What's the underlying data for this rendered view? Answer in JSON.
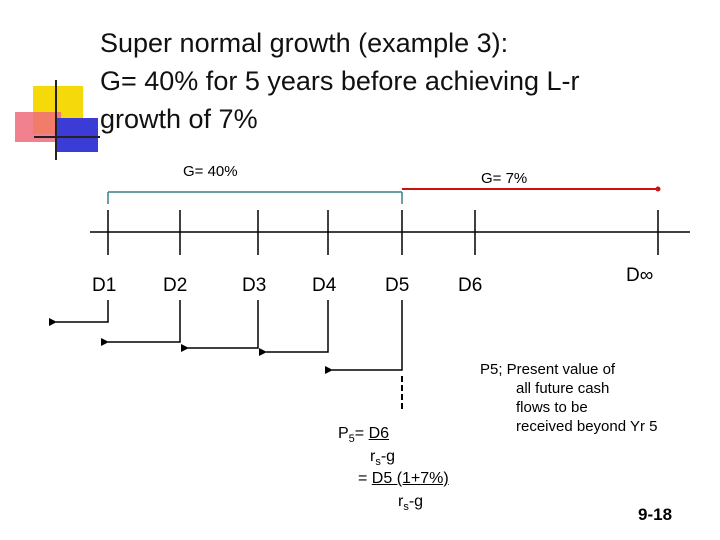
{
  "title": {
    "line1": "Super normal growth (example 3):",
    "line2": "G= 40% for 5 years before achieving L-r",
    "line3": "growth of 7%"
  },
  "timeline": {
    "label_high": "G= 40%",
    "label_low": "G= 7%",
    "dividends": [
      "D1",
      "D2",
      "D3",
      "D4",
      "D5",
      "D6"
    ],
    "dividend_infinity": "D∞"
  },
  "formula": {
    "p5_symbol": "P",
    "p5_sub": "5",
    "equals": "= ",
    "numerator1": "D6",
    "denominator1_r": "r",
    "denominator1_sub": "s",
    "denominator1_tail": "-g",
    "equals2": "= ",
    "numerator2": "D5 (1+7%)",
    "denominator2_r": "r",
    "denominator2_sub": "s",
    "denominator2_tail": "-g"
  },
  "note": {
    "line1": "P5; Present value of",
    "line2": "all future cash",
    "line3": "flows to be",
    "line4": "received beyond Yr 5"
  },
  "slide_number": "9-18",
  "colors": {
    "accent_yellow": "#f5d90a",
    "accent_red": "#f06b7b",
    "accent_blue": "#3b3bd6",
    "bracket_teal": "#3a7f84",
    "growth_red": "#cc1111"
  }
}
